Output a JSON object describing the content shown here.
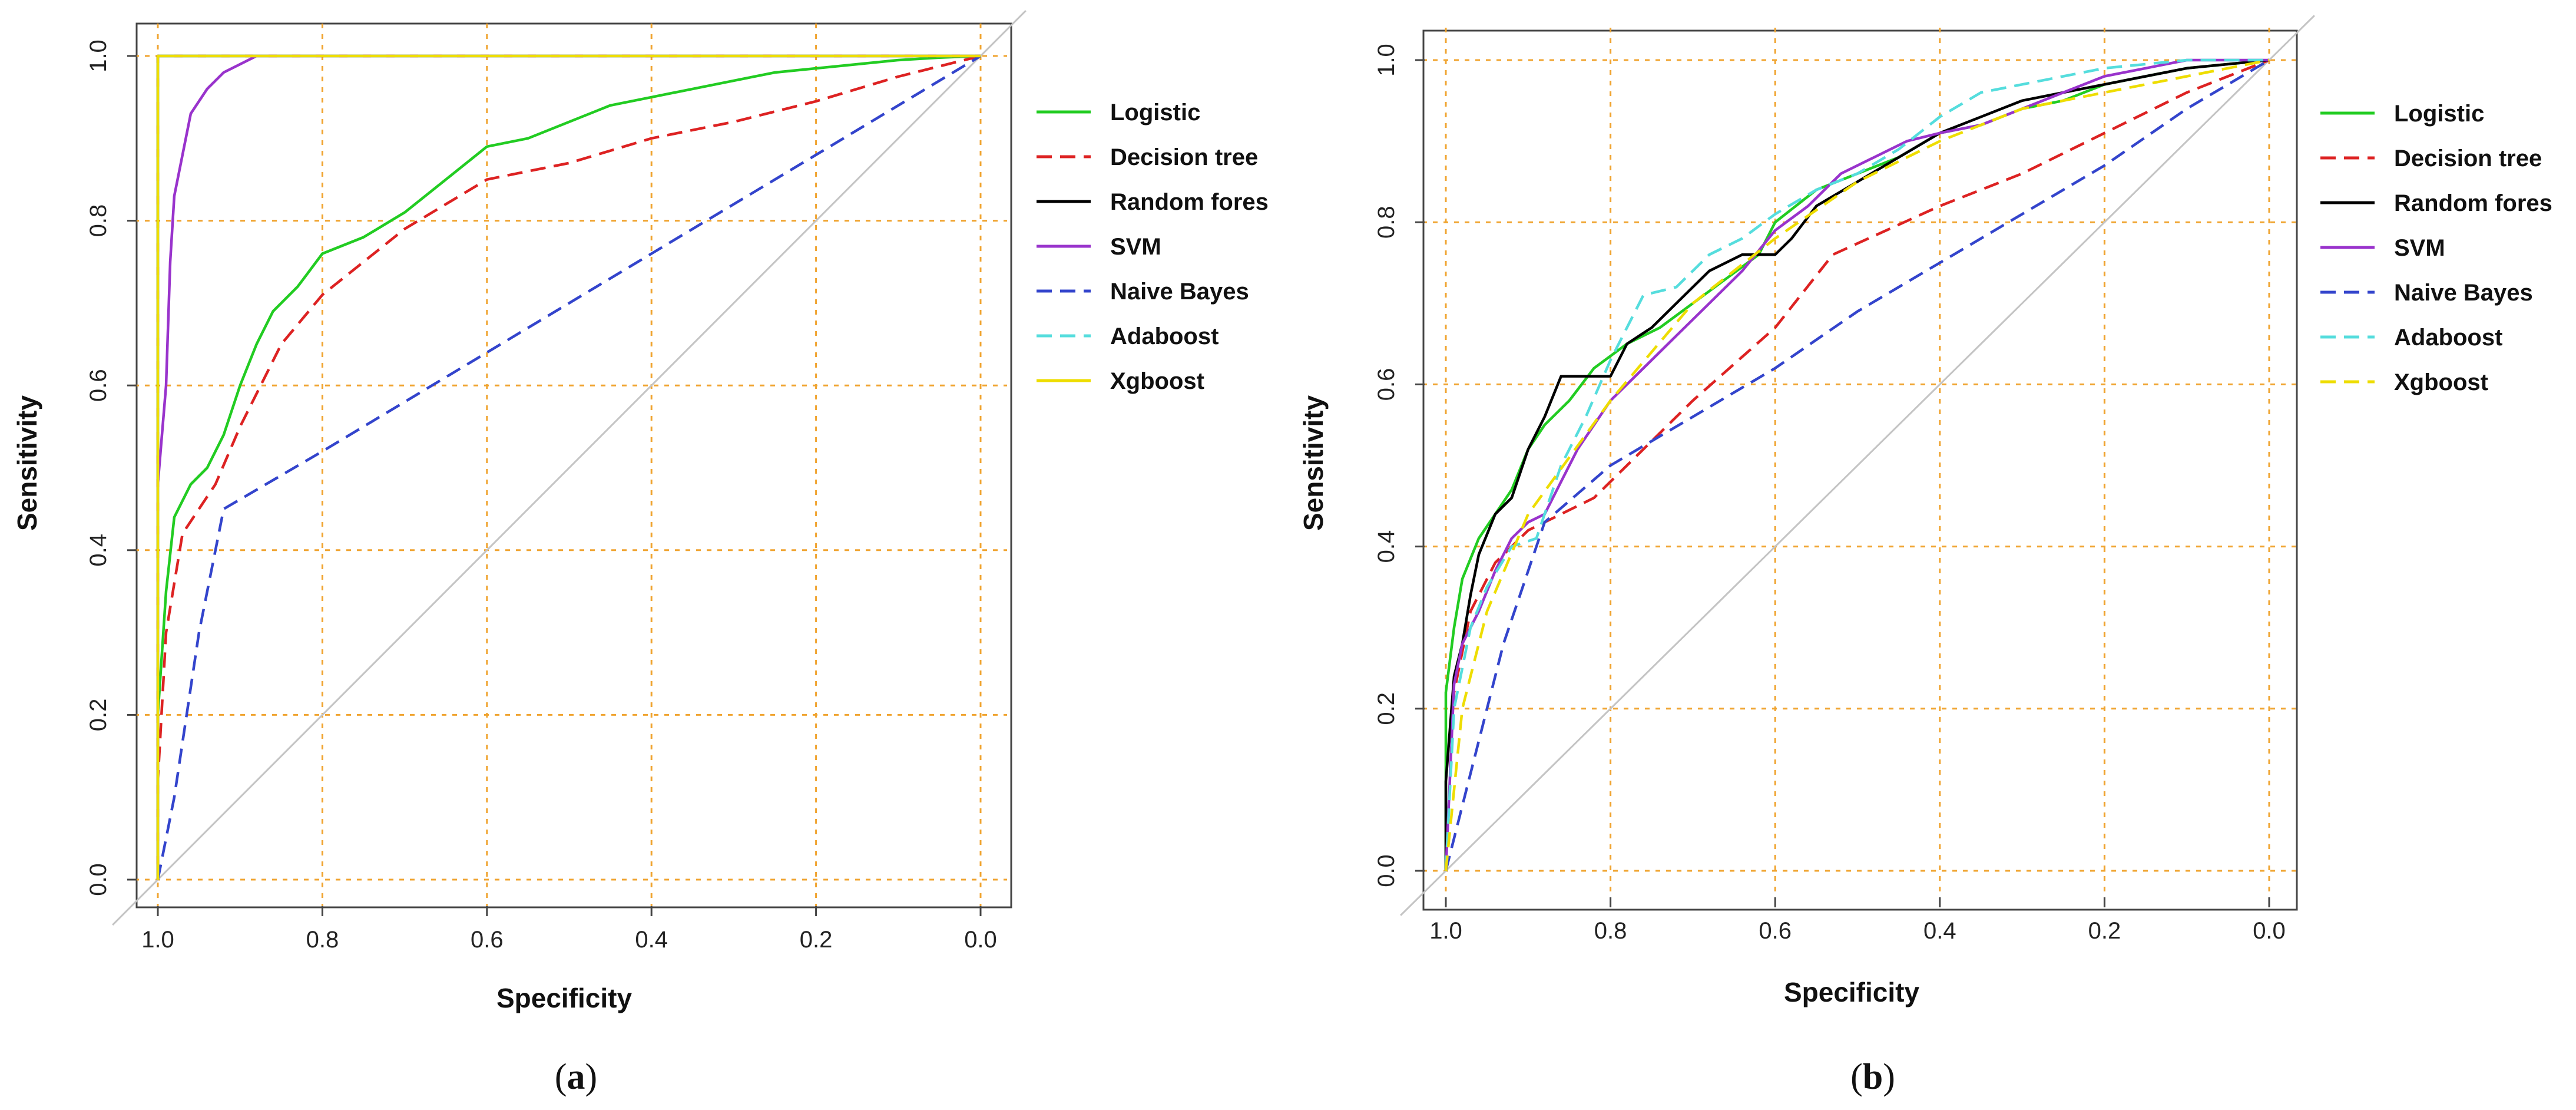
{
  "chart_data": [
    {
      "type": "line",
      "panel_label": "(a)",
      "panel_letter": "a",
      "xlabel": "Specificity",
      "ylabel": "Sensitivity",
      "xlim": [
        1.0,
        0.0
      ],
      "ylim": [
        0.0,
        1.0
      ],
      "x_ticks": [
        "1.0",
        "0.8",
        "0.6",
        "0.4",
        "0.2",
        "0.0"
      ],
      "y_ticks": [
        "0.0",
        "0.2",
        "0.4",
        "0.6",
        "0.8",
        "1.0"
      ],
      "grid": true,
      "legend_position": "right",
      "reference_line": [
        [
          1.0,
          0.0
        ],
        [
          0.0,
          1.0
        ]
      ],
      "series": [
        {
          "name": "Logistic",
          "color": "#22cc22",
          "dash": "solid",
          "points": [
            [
              1.0,
              0.0
            ],
            [
              1.0,
              0.2
            ],
            [
              0.99,
              0.35
            ],
            [
              0.98,
              0.44
            ],
            [
              0.96,
              0.48
            ],
            [
              0.94,
              0.5
            ],
            [
              0.92,
              0.54
            ],
            [
              0.9,
              0.6
            ],
            [
              0.88,
              0.65
            ],
            [
              0.86,
              0.69
            ],
            [
              0.83,
              0.72
            ],
            [
              0.8,
              0.76
            ],
            [
              0.75,
              0.78
            ],
            [
              0.7,
              0.81
            ],
            [
              0.65,
              0.85
            ],
            [
              0.6,
              0.89
            ],
            [
              0.55,
              0.9
            ],
            [
              0.5,
              0.92
            ],
            [
              0.45,
              0.94
            ],
            [
              0.4,
              0.95
            ],
            [
              0.35,
              0.96
            ],
            [
              0.3,
              0.97
            ],
            [
              0.25,
              0.98
            ],
            [
              0.2,
              0.985
            ],
            [
              0.15,
              0.99
            ],
            [
              0.1,
              0.995
            ],
            [
              0.05,
              0.998
            ],
            [
              0.0,
              1.0
            ]
          ]
        },
        {
          "name": "Decision tree",
          "color": "#dd2222",
          "dash": "dashed",
          "points": [
            [
              1.0,
              0.0
            ],
            [
              1.0,
              0.12
            ],
            [
              0.99,
              0.3
            ],
            [
              0.97,
              0.42
            ],
            [
              0.93,
              0.48
            ],
            [
              0.9,
              0.55
            ],
            [
              0.85,
              0.65
            ],
            [
              0.8,
              0.71
            ],
            [
              0.75,
              0.75
            ],
            [
              0.7,
              0.79
            ],
            [
              0.65,
              0.82
            ],
            [
              0.6,
              0.85
            ],
            [
              0.5,
              0.87
            ],
            [
              0.4,
              0.9
            ],
            [
              0.3,
              0.92
            ],
            [
              0.2,
              0.945
            ],
            [
              0.1,
              0.975
            ],
            [
              0.0,
              1.0
            ]
          ]
        },
        {
          "name": "Random fores",
          "color": "#000000",
          "dash": "solid",
          "points": [
            [
              1.0,
              0.0
            ],
            [
              1.0,
              1.0
            ],
            [
              0.0,
              1.0
            ]
          ]
        },
        {
          "name": "SVM",
          "color": "#9933cc",
          "dash": "solid",
          "points": [
            [
              1.0,
              0.0
            ],
            [
              1.0,
              0.48
            ],
            [
              0.99,
              0.6
            ],
            [
              0.985,
              0.75
            ],
            [
              0.98,
              0.83
            ],
            [
              0.97,
              0.88
            ],
            [
              0.96,
              0.93
            ],
            [
              0.94,
              0.96
            ],
            [
              0.92,
              0.98
            ],
            [
              0.9,
              0.99
            ],
            [
              0.88,
              1.0
            ],
            [
              0.0,
              1.0
            ]
          ]
        },
        {
          "name": "Naive Bayes",
          "color": "#3344cc",
          "dash": "dashed",
          "points": [
            [
              1.0,
              0.0
            ],
            [
              0.98,
              0.1
            ],
            [
              0.95,
              0.3
            ],
            [
              0.92,
              0.45
            ],
            [
              0.8,
              0.52
            ],
            [
              0.6,
              0.64
            ],
            [
              0.5,
              0.7
            ],
            [
              0.4,
              0.76
            ],
            [
              0.3,
              0.82
            ],
            [
              0.2,
              0.88
            ],
            [
              0.1,
              0.94
            ],
            [
              0.0,
              1.0
            ]
          ]
        },
        {
          "name": "Adaboost",
          "color": "#55dddd",
          "dash": "dashed",
          "points": [
            [
              1.0,
              0.0
            ],
            [
              1.0,
              1.0
            ],
            [
              0.0,
              1.0
            ]
          ]
        },
        {
          "name": "Xgboost",
          "color": "#eedd00",
          "dash": "solid",
          "points": [
            [
              1.0,
              0.0
            ],
            [
              1.0,
              1.0
            ],
            [
              0.0,
              1.0
            ]
          ]
        }
      ]
    },
    {
      "type": "line",
      "panel_label": "(b)",
      "panel_letter": "b",
      "xlabel": "Specificity",
      "ylabel": "Sensitivity",
      "xlim": [
        1.0,
        0.0
      ],
      "ylim": [
        0.0,
        1.0
      ],
      "x_ticks": [
        "1.0",
        "0.8",
        "0.6",
        "0.4",
        "0.2",
        "0.0"
      ],
      "y_ticks": [
        "0.0",
        "0.2",
        "0.4",
        "0.6",
        "0.8",
        "1.0"
      ],
      "grid": true,
      "legend_position": "right",
      "reference_line": [
        [
          1.0,
          0.0
        ],
        [
          0.0,
          1.0
        ]
      ],
      "series": [
        {
          "name": "Logistic",
          "color": "#22cc22",
          "dash": "solid",
          "points": [
            [
              1.0,
              0.0
            ],
            [
              1.0,
              0.22
            ],
            [
              0.99,
              0.3
            ],
            [
              0.98,
              0.36
            ],
            [
              0.96,
              0.41
            ],
            [
              0.94,
              0.44
            ],
            [
              0.92,
              0.47
            ],
            [
              0.9,
              0.52
            ],
            [
              0.88,
              0.55
            ],
            [
              0.85,
              0.58
            ],
            [
              0.82,
              0.62
            ],
            [
              0.78,
              0.65
            ],
            [
              0.74,
              0.67
            ],
            [
              0.7,
              0.7
            ],
            [
              0.66,
              0.73
            ],
            [
              0.62,
              0.76
            ],
            [
              0.6,
              0.8
            ],
            [
              0.55,
              0.84
            ],
            [
              0.5,
              0.86
            ],
            [
              0.45,
              0.88
            ],
            [
              0.4,
              0.91
            ],
            [
              0.35,
              0.92
            ],
            [
              0.3,
              0.94
            ],
            [
              0.25,
              0.95
            ],
            [
              0.2,
              0.97
            ],
            [
              0.15,
              0.98
            ],
            [
              0.1,
              0.99
            ],
            [
              0.0,
              1.0
            ]
          ]
        },
        {
          "name": "Decision tree",
          "color": "#dd2222",
          "dash": "dashed",
          "points": [
            [
              1.0,
              0.0
            ],
            [
              0.99,
              0.22
            ],
            [
              0.97,
              0.32
            ],
            [
              0.94,
              0.38
            ],
            [
              0.9,
              0.42
            ],
            [
              0.82,
              0.46
            ],
            [
              0.7,
              0.58
            ],
            [
              0.6,
              0.67
            ],
            [
              0.53,
              0.76
            ],
            [
              0.4,
              0.82
            ],
            [
              0.3,
              0.86
            ],
            [
              0.2,
              0.91
            ],
            [
              0.1,
              0.96
            ],
            [
              0.0,
              1.0
            ]
          ]
        },
        {
          "name": "Random fores",
          "color": "#000000",
          "dash": "solid",
          "points": [
            [
              1.0,
              0.0
            ],
            [
              1.0,
              0.11
            ],
            [
              0.99,
              0.24
            ],
            [
              0.98,
              0.28
            ],
            [
              0.97,
              0.34
            ],
            [
              0.96,
              0.39
            ],
            [
              0.94,
              0.44
            ],
            [
              0.92,
              0.46
            ],
            [
              0.9,
              0.52
            ],
            [
              0.88,
              0.56
            ],
            [
              0.86,
              0.61
            ],
            [
              0.8,
              0.61
            ],
            [
              0.78,
              0.65
            ],
            [
              0.75,
              0.67
            ],
            [
              0.72,
              0.7
            ],
            [
              0.68,
              0.74
            ],
            [
              0.64,
              0.76
            ],
            [
              0.6,
              0.76
            ],
            [
              0.58,
              0.78
            ],
            [
              0.55,
              0.82
            ],
            [
              0.5,
              0.85
            ],
            [
              0.45,
              0.88
            ],
            [
              0.4,
              0.91
            ],
            [
              0.35,
              0.93
            ],
            [
              0.3,
              0.95
            ],
            [
              0.25,
              0.96
            ],
            [
              0.2,
              0.97
            ],
            [
              0.15,
              0.98
            ],
            [
              0.1,
              0.99
            ],
            [
              0.0,
              1.0
            ]
          ]
        },
        {
          "name": "SVM",
          "color": "#9933cc",
          "dash": "solid",
          "points": [
            [
              1.0,
              0.0
            ],
            [
              0.99,
              0.23
            ],
            [
              0.98,
              0.28
            ],
            [
              0.96,
              0.32
            ],
            [
              0.94,
              0.37
            ],
            [
              0.92,
              0.41
            ],
            [
              0.9,
              0.43
            ],
            [
              0.88,
              0.44
            ],
            [
              0.86,
              0.48
            ],
            [
              0.84,
              0.52
            ],
            [
              0.8,
              0.58
            ],
            [
              0.76,
              0.62
            ],
            [
              0.72,
              0.66
            ],
            [
              0.68,
              0.7
            ],
            [
              0.64,
              0.74
            ],
            [
              0.6,
              0.79
            ],
            [
              0.56,
              0.82
            ],
            [
              0.52,
              0.86
            ],
            [
              0.48,
              0.88
            ],
            [
              0.44,
              0.9
            ],
            [
              0.4,
              0.91
            ],
            [
              0.35,
              0.92
            ],
            [
              0.3,
              0.94
            ],
            [
              0.25,
              0.96
            ],
            [
              0.2,
              0.98
            ],
            [
              0.15,
              0.99
            ],
            [
              0.1,
              1.0
            ],
            [
              0.0,
              1.0
            ]
          ]
        },
        {
          "name": "Naive Bayes",
          "color": "#3344cc",
          "dash": "dashed",
          "points": [
            [
              1.0,
              0.0
            ],
            [
              0.97,
              0.12
            ],
            [
              0.93,
              0.28
            ],
            [
              0.88,
              0.43
            ],
            [
              0.8,
              0.5
            ],
            [
              0.7,
              0.56
            ],
            [
              0.6,
              0.62
            ],
            [
              0.5,
              0.69
            ],
            [
              0.4,
              0.75
            ],
            [
              0.3,
              0.81
            ],
            [
              0.2,
              0.87
            ],
            [
              0.1,
              0.94
            ],
            [
              0.0,
              1.0
            ]
          ]
        },
        {
          "name": "Adaboost",
          "color": "#55dddd",
          "dash": "dashed",
          "points": [
            [
              1.0,
              0.0
            ],
            [
              0.99,
              0.2
            ],
            [
              0.97,
              0.3
            ],
            [
              0.95,
              0.35
            ],
            [
              0.92,
              0.4
            ],
            [
              0.89,
              0.41
            ],
            [
              0.86,
              0.5
            ],
            [
              0.83,
              0.56
            ],
            [
              0.8,
              0.63
            ],
            [
              0.76,
              0.71
            ],
            [
              0.72,
              0.72
            ],
            [
              0.68,
              0.76
            ],
            [
              0.64,
              0.78
            ],
            [
              0.6,
              0.81
            ],
            [
              0.55,
              0.84
            ],
            [
              0.5,
              0.86
            ],
            [
              0.45,
              0.89
            ],
            [
              0.4,
              0.93
            ],
            [
              0.35,
              0.96
            ],
            [
              0.3,
              0.97
            ],
            [
              0.25,
              0.98
            ],
            [
              0.2,
              0.99
            ],
            [
              0.1,
              1.0
            ],
            [
              0.0,
              1.0
            ]
          ]
        },
        {
          "name": "Xgboost",
          "color": "#eedd00",
          "dash": "dashed",
          "points": [
            [
              1.0,
              0.0
            ],
            [
              0.98,
              0.2
            ],
            [
              0.95,
              0.32
            ],
            [
              0.9,
              0.44
            ],
            [
              0.85,
              0.51
            ],
            [
              0.8,
              0.58
            ],
            [
              0.75,
              0.64
            ],
            [
              0.7,
              0.7
            ],
            [
              0.6,
              0.78
            ],
            [
              0.5,
              0.85
            ],
            [
              0.4,
              0.9
            ],
            [
              0.3,
              0.94
            ],
            [
              0.2,
              0.96
            ],
            [
              0.1,
              0.98
            ],
            [
              0.0,
              1.0
            ]
          ]
        }
      ]
    }
  ]
}
